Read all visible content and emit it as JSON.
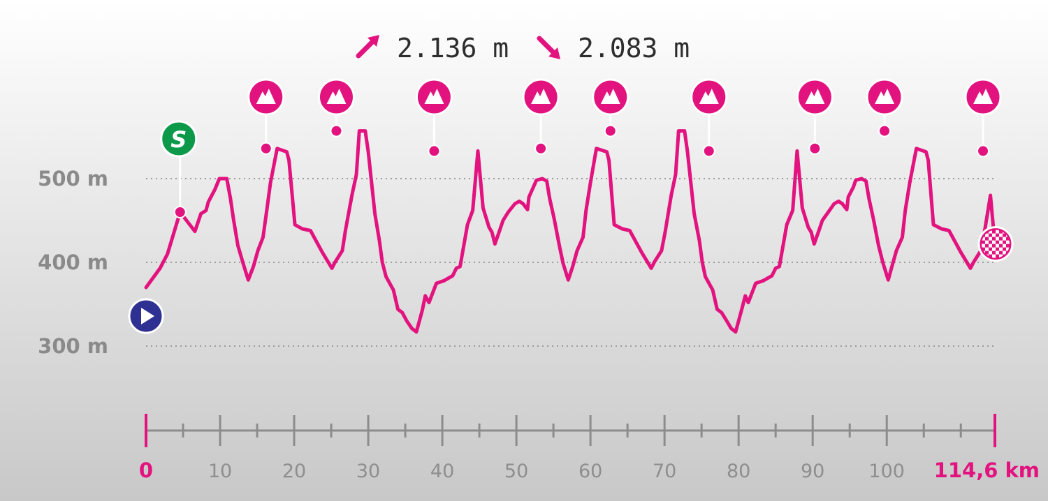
{
  "header": {
    "ascent": "2.136 m",
    "descent": "2.083 m",
    "ascent_icon": "arrow-up-right-icon",
    "descent_icon": "arrow-down-right-icon"
  },
  "colors": {
    "profile": "#e2137f",
    "start": "#2e3092",
    "sprint": "#0c9a4a",
    "grid": "#9a9a9a",
    "axis": "#8c8c8c"
  },
  "chart_data": {
    "type": "line",
    "x_unit": "km",
    "y_unit": "m",
    "xlim": [
      0,
      114.6
    ],
    "ylim": [
      300,
      500
    ],
    "y_ticks": [
      {
        "value": 500,
        "label": "500 m"
      },
      {
        "value": 400,
        "label": "400 m"
      },
      {
        "value": 300,
        "label": "300 m"
      }
    ],
    "x_ticks": [
      {
        "value": 0,
        "label": "0",
        "end": true
      },
      {
        "value": 10,
        "label": "10"
      },
      {
        "value": 20,
        "label": "20"
      },
      {
        "value": 30,
        "label": "30"
      },
      {
        "value": 40,
        "label": "40"
      },
      {
        "value": 50,
        "label": "50"
      },
      {
        "value": 60,
        "label": "60"
      },
      {
        "value": 70,
        "label": "70"
      },
      {
        "value": 80,
        "label": "80"
      },
      {
        "value": 90,
        "label": "90"
      },
      {
        "value": 100,
        "label": "100"
      },
      {
        "value": 114.6,
        "label": "114,6 km",
        "end": true
      }
    ],
    "minor_ticks": [
      5,
      15,
      25,
      35,
      45,
      55,
      65,
      75,
      85,
      95,
      105,
      110
    ],
    "grid": true,
    "elevation": [
      [
        0.0,
        370
      ],
      [
        1.9,
        393
      ],
      [
        2.9,
        410
      ],
      [
        4.6,
        460
      ],
      [
        6.6,
        437
      ],
      [
        7.4,
        458
      ],
      [
        8.1,
        462
      ],
      [
        8.4,
        472
      ],
      [
        9.3,
        487
      ],
      [
        9.9,
        500
      ],
      [
        10.9,
        500
      ],
      [
        11.4,
        476
      ],
      [
        11.8,
        452
      ],
      [
        12.4,
        420
      ],
      [
        13.1,
        399
      ],
      [
        13.8,
        379
      ],
      [
        14.5,
        395
      ],
      [
        15.1,
        414
      ],
      [
        15.8,
        430
      ],
      [
        16.3,
        462
      ],
      [
        16.8,
        495
      ],
      [
        17.7,
        536
      ],
      [
        19.0,
        532
      ],
      [
        19.3,
        522
      ],
      [
        20.1,
        445
      ],
      [
        21.1,
        440
      ],
      [
        22.2,
        438
      ],
      [
        23.8,
        412
      ],
      [
        25.1,
        393
      ],
      [
        25.5,
        400
      ],
      [
        26.5,
        414
      ],
      [
        26.9,
        437
      ],
      [
        27.8,
        480
      ],
      [
        28.4,
        505
      ],
      [
        28.8,
        557
      ],
      [
        29.6,
        557
      ],
      [
        30.0,
        532
      ],
      [
        30.9,
        458
      ],
      [
        31.5,
        426
      ],
      [
        31.9,
        400
      ],
      [
        32.4,
        383
      ],
      [
        33.4,
        367
      ],
      [
        34.0,
        344
      ],
      [
        34.6,
        340
      ],
      [
        35.2,
        330
      ],
      [
        35.9,
        321
      ],
      [
        36.5,
        317
      ],
      [
        37.3,
        343
      ],
      [
        37.7,
        360
      ],
      [
        38.2,
        352
      ],
      [
        39.2,
        375
      ],
      [
        40.2,
        378
      ],
      [
        41.4,
        384
      ],
      [
        41.9,
        393
      ],
      [
        42.4,
        395
      ],
      [
        43.4,
        445
      ],
      [
        44.1,
        462
      ],
      [
        44.8,
        533
      ],
      [
        45.5,
        465
      ],
      [
        46.3,
        442
      ],
      [
        46.7,
        436
      ],
      [
        47.1,
        422
      ],
      [
        47.7,
        437
      ],
      [
        48.2,
        450
      ],
      [
        48.9,
        460
      ],
      [
        49.8,
        470
      ],
      [
        50.4,
        473
      ],
      [
        50.9,
        470
      ],
      [
        51.5,
        463
      ],
      [
        51.7,
        478
      ],
      [
        52.3,
        490
      ],
      [
        52.7,
        498
      ],
      [
        53.5,
        500
      ],
      [
        54.1,
        497
      ],
      [
        54.5,
        476
      ],
      [
        55.1,
        452
      ],
      [
        55.8,
        420
      ],
      [
        56.3,
        399
      ],
      [
        57.0,
        379
      ],
      [
        57.6,
        395
      ],
      [
        58.2,
        414
      ],
      [
        59.0,
        430
      ],
      [
        59.4,
        462
      ],
      [
        60.0,
        495
      ],
      [
        60.8,
        536
      ],
      [
        62.2,
        532
      ],
      [
        62.5,
        522
      ],
      [
        63.2,
        445
      ],
      [
        64.3,
        440
      ],
      [
        65.3,
        438
      ],
      [
        66.9,
        412
      ],
      [
        68.2,
        393
      ],
      [
        68.6,
        400
      ],
      [
        69.6,
        414
      ],
      [
        70.1,
        437
      ],
      [
        70.9,
        480
      ],
      [
        71.5,
        505
      ],
      [
        71.9,
        557
      ],
      [
        72.7,
        557
      ],
      [
        73.1,
        532
      ],
      [
        74.0,
        458
      ],
      [
        74.7,
        426
      ],
      [
        75.1,
        400
      ],
      [
        75.5,
        383
      ],
      [
        76.5,
        367
      ],
      [
        77.1,
        344
      ],
      [
        77.7,
        340
      ],
      [
        78.4,
        330
      ],
      [
        79.0,
        321
      ],
      [
        79.6,
        317
      ],
      [
        80.4,
        343
      ],
      [
        80.9,
        360
      ],
      [
        81.3,
        352
      ],
      [
        82.3,
        375
      ],
      [
        83.3,
        378
      ],
      [
        84.5,
        384
      ],
      [
        85.0,
        393
      ],
      [
        85.5,
        395
      ],
      [
        86.5,
        445
      ],
      [
        87.3,
        462
      ],
      [
        87.9,
        533
      ],
      [
        88.6,
        465
      ],
      [
        89.4,
        442
      ],
      [
        89.8,
        436
      ],
      [
        90.2,
        422
      ],
      [
        90.8,
        437
      ],
      [
        91.3,
        450
      ],
      [
        92.1,
        460
      ],
      [
        92.9,
        470
      ],
      [
        93.5,
        473
      ],
      [
        94.0,
        470
      ],
      [
        94.6,
        463
      ],
      [
        94.8,
        478
      ],
      [
        95.5,
        490
      ],
      [
        95.8,
        498
      ],
      [
        96.6,
        500
      ],
      [
        97.2,
        497
      ],
      [
        97.6,
        476
      ],
      [
        98.2,
        452
      ],
      [
        98.9,
        420
      ],
      [
        99.5,
        399
      ],
      [
        100.2,
        379
      ],
      [
        100.7,
        395
      ],
      [
        101.3,
        414
      ],
      [
        102.1,
        430
      ],
      [
        102.5,
        462
      ],
      [
        103.1,
        495
      ],
      [
        104.0,
        536
      ],
      [
        105.3,
        532
      ],
      [
        105.6,
        522
      ],
      [
        106.3,
        445
      ],
      [
        107.4,
        440
      ],
      [
        108.4,
        438
      ],
      [
        110.0,
        412
      ],
      [
        111.3,
        393
      ],
      [
        111.7,
        400
      ],
      [
        112.7,
        414
      ],
      [
        113.2,
        437
      ],
      [
        114.0,
        480
      ],
      [
        114.6,
        422
      ]
    ],
    "markers": [
      {
        "type": "start",
        "km": 0,
        "elevation": 370,
        "icon": "play-icon"
      },
      {
        "type": "sprint",
        "km": 4.6,
        "elevation": 460,
        "label": "S"
      },
      {
        "type": "climb",
        "km": 16.2,
        "elevation": 536,
        "icon": "mountain-icon"
      },
      {
        "type": "climb",
        "km": 25.7,
        "elevation": 557,
        "icon": "mountain-icon"
      },
      {
        "type": "climb",
        "km": 38.9,
        "elevation": 533,
        "icon": "mountain-icon"
      },
      {
        "type": "climb",
        "km": 53.3,
        "elevation": 536,
        "icon": "mountain-icon"
      },
      {
        "type": "climb",
        "km": 62.7,
        "elevation": 557,
        "icon": "mountain-icon"
      },
      {
        "type": "climb",
        "km": 76.0,
        "elevation": 533,
        "icon": "mountain-icon"
      },
      {
        "type": "climb",
        "km": 90.3,
        "elevation": 536,
        "icon": "mountain-icon"
      },
      {
        "type": "climb",
        "km": 99.7,
        "elevation": 557,
        "icon": "mountain-icon"
      },
      {
        "type": "climb",
        "km": 113.0,
        "elevation": 533,
        "icon": "mountain-icon"
      },
      {
        "type": "finish",
        "km": 114.6,
        "elevation": 422,
        "icon": "checkered-flag-icon"
      }
    ]
  }
}
